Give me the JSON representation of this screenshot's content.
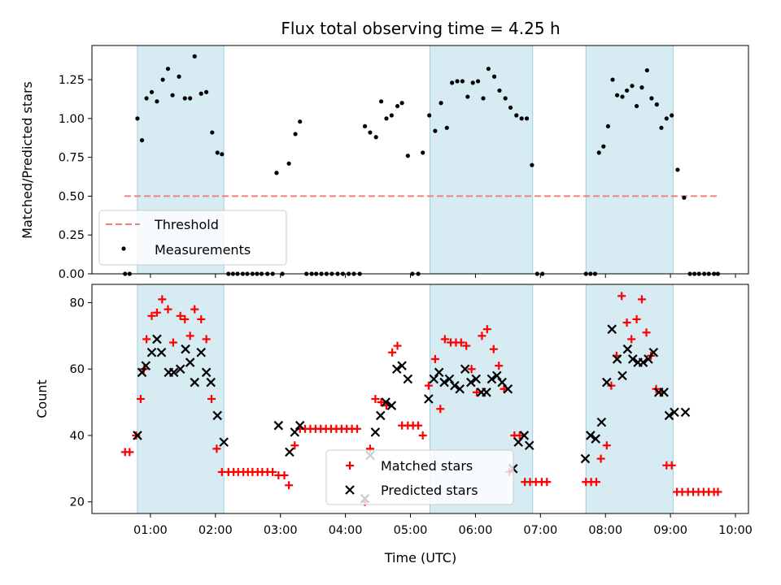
{
  "chart_data": [
    {
      "type": "scatter",
      "title": "Flux total observing time = 4.25 h",
      "ylabel": "Matched/Predicted stars",
      "xlabel": "",
      "xlim": [
        0.1,
        10.2
      ],
      "ylim": [
        0,
        1.47
      ],
      "yticks": [
        0.0,
        0.25,
        0.5,
        0.75,
        1.0,
        1.25
      ],
      "ytick_labels": [
        "0.00",
        "0.25",
        "0.50",
        "0.75",
        "1.00",
        "1.25"
      ],
      "shaded_intervals": [
        [
          0.8,
          2.13
        ],
        [
          5.3,
          6.88
        ],
        [
          7.7,
          9.04
        ]
      ],
      "threshold": {
        "name": "Threshold",
        "y": 0.5,
        "x": [
          0.6,
          9.73
        ],
        "color": "#f08080"
      },
      "legend": {
        "placement": "lower-left",
        "entries": [
          "Threshold",
          "Measurements"
        ]
      },
      "series": [
        {
          "name": "Measurements",
          "color": "#000000",
          "x": [
            0.61,
            0.68,
            0.8,
            0.87,
            0.94,
            1.02,
            1.1,
            1.19,
            1.27,
            1.34,
            1.44,
            1.53,
            1.61,
            1.68,
            1.78,
            1.86,
            1.95,
            2.03,
            2.1,
            2.2,
            2.27,
            2.34,
            2.42,
            2.49,
            2.57,
            2.64,
            2.71,
            2.8,
            2.88,
            2.94,
            3.03,
            3.13,
            3.23,
            3.3,
            3.4,
            3.48,
            3.55,
            3.63,
            3.71,
            3.79,
            3.88,
            3.96,
            4.05,
            4.13,
            4.22,
            4.3,
            4.38,
            4.47,
            4.55,
            4.63,
            4.71,
            4.8,
            4.87,
            4.96,
            5.03,
            5.12,
            5.19,
            5.29,
            5.38,
            5.47,
            5.56,
            5.64,
            5.72,
            5.8,
            5.88,
            5.96,
            6.04,
            6.12,
            6.2,
            6.29,
            6.37,
            6.46,
            6.54,
            6.63,
            6.71,
            6.79,
            6.87,
            6.95,
            7.03,
            7.7,
            7.77,
            7.84,
            7.9,
            7.97,
            8.04,
            8.11,
            8.18,
            8.26,
            8.33,
            8.41,
            8.48,
            8.56,
            8.64,
            8.71,
            8.79,
            8.86,
            8.94,
            9.02,
            9.11,
            9.21,
            9.3,
            9.37,
            9.44,
            9.52,
            9.59,
            9.67,
            9.73
          ],
          "y": [
            0,
            0,
            1.0,
            0.86,
            1.13,
            1.17,
            1.11,
            1.25,
            1.32,
            1.15,
            1.27,
            1.13,
            1.13,
            1.4,
            1.16,
            1.17,
            0.91,
            0.78,
            0.77,
            0,
            0,
            0,
            0,
            0,
            0,
            0,
            0,
            0,
            0,
            0.65,
            0,
            0.71,
            0.9,
            0.98,
            0,
            0,
            0,
            0,
            0,
            0,
            0,
            0,
            0,
            0,
            0,
            0.95,
            0.91,
            0.88,
            1.11,
            1.0,
            1.02,
            1.08,
            1.1,
            0.76,
            0,
            0,
            0.78,
            1.02,
            0.92,
            1.1,
            0.94,
            1.23,
            1.24,
            1.24,
            1.14,
            1.23,
            1.24,
            1.13,
            1.32,
            1.27,
            1.18,
            1.13,
            1.07,
            1.02,
            1.0,
            1.0,
            0.7,
            0,
            0,
            0,
            0,
            0,
            0.78,
            0.82,
            0.95,
            1.25,
            1.15,
            1.14,
            1.18,
            1.21,
            1.08,
            1.2,
            1.31,
            1.13,
            1.09,
            0.94,
            1.0,
            1.02,
            0.67,
            0.49,
            0,
            0,
            0,
            0,
            0,
            0,
            0
          ]
        }
      ]
    },
    {
      "type": "scatter",
      "title": "",
      "xlabel": "Time (UTC)",
      "ylabel": "Count",
      "xlim": [
        0.1,
        10.2
      ],
      "ylim": [
        16.5,
        85.5
      ],
      "yticks": [
        20,
        40,
        60,
        80
      ],
      "ytick_labels": [
        "20",
        "40",
        "60",
        "80"
      ],
      "xticks": [
        1,
        2,
        3,
        4,
        5,
        6,
        7,
        8,
        9,
        10
      ],
      "xtick_labels": [
        "01:00",
        "02:00",
        "03:00",
        "04:00",
        "05:00",
        "06:00",
        "07:00",
        "08:00",
        "09:00",
        "10:00"
      ],
      "shaded_intervals": [
        [
          0.8,
          2.13
        ],
        [
          5.3,
          6.88
        ],
        [
          7.7,
          9.04
        ]
      ],
      "legend": {
        "placement": "lower-center",
        "entries": [
          "Matched stars",
          "Predicted stars"
        ]
      },
      "series": [
        {
          "name": "Matched stars",
          "marker": "plus",
          "color": "#ff0000",
          "x": [
            0.61,
            0.68,
            0.78,
            0.85,
            0.9,
            0.94,
            1.02,
            1.1,
            1.18,
            1.27,
            1.35,
            1.46,
            1.53,
            1.61,
            1.68,
            1.78,
            1.86,
            1.94,
            2.02,
            2.1,
            2.2,
            2.28,
            2.35,
            2.43,
            2.5,
            2.57,
            2.65,
            2.72,
            2.8,
            2.88,
            2.97,
            3.06,
            3.13,
            3.22,
            3.3,
            3.38,
            3.46,
            3.54,
            3.62,
            3.7,
            3.78,
            3.86,
            3.94,
            4.02,
            4.1,
            4.18,
            4.3,
            4.38,
            4.46,
            4.55,
            4.63,
            4.72,
            4.8,
            4.87,
            4.96,
            5.04,
            5.12,
            5.19,
            5.28,
            5.38,
            5.46,
            5.53,
            5.62,
            5.7,
            5.78,
            5.86,
            5.94,
            6.02,
            6.1,
            6.18,
            6.28,
            6.36,
            6.44,
            6.52,
            6.6,
            6.68,
            6.76,
            6.84,
            6.93,
            7.02,
            7.1,
            7.7,
            7.78,
            7.86,
            7.93,
            8.02,
            8.09,
            8.17,
            8.25,
            8.33,
            8.4,
            8.48,
            8.56,
            8.63,
            8.7,
            8.78,
            8.86,
            8.94,
            9.02,
            9.1,
            9.18,
            9.27,
            9.35,
            9.43,
            9.51,
            9.59,
            9.67,
            9.73
          ],
          "y": [
            35,
            35,
            40,
            51,
            60,
            69,
            76,
            77,
            81,
            78,
            68,
            76,
            75,
            70,
            78,
            75,
            69,
            51,
            36,
            29,
            29,
            29,
            29,
            29,
            29,
            29,
            29,
            29,
            29,
            29,
            28,
            28,
            25,
            37,
            42,
            42,
            42,
            42,
            42,
            42,
            42,
            42,
            42,
            42,
            42,
            42,
            20,
            36,
            51,
            50,
            49,
            65,
            67,
            43,
            43,
            43,
            43,
            40,
            55,
            63,
            48,
            69,
            68,
            68,
            68,
            67,
            60,
            53,
            70,
            72,
            66,
            61,
            54,
            29,
            40,
            40,
            26,
            26,
            26,
            26,
            26,
            26,
            26,
            26,
            33,
            37,
            55,
            64,
            82,
            74,
            69,
            75,
            81,
            71,
            64,
            54,
            53,
            31,
            31,
            23,
            23,
            23,
            23,
            23,
            23,
            23,
            23,
            23
          ]
        },
        {
          "name": "Predicted stars",
          "marker": "cross",
          "color": "#000000",
          "x": [
            0.8,
            0.87,
            0.93,
            1.02,
            1.1,
            1.17,
            1.28,
            1.36,
            1.46,
            1.54,
            1.61,
            1.68,
            1.78,
            1.86,
            1.93,
            2.03,
            2.13,
            2.97,
            3.14,
            3.22,
            3.3,
            4.3,
            4.38,
            4.46,
            4.54,
            4.62,
            4.71,
            4.79,
            4.87,
            4.96,
            5.28,
            5.36,
            5.44,
            5.52,
            5.6,
            5.68,
            5.76,
            5.84,
            5.93,
            6.01,
            6.09,
            6.17,
            6.25,
            6.33,
            6.41,
            6.5,
            6.58,
            6.66,
            6.75,
            6.83,
            7.69,
            7.77,
            7.85,
            7.94,
            8.02,
            8.1,
            8.18,
            8.26,
            8.34,
            8.42,
            8.5,
            8.58,
            8.66,
            8.74,
            8.82,
            8.9,
            8.98,
            9.06,
            9.23
          ],
          "y": [
            40,
            59,
            61,
            65,
            69,
            65,
            59,
            59,
            60,
            66,
            62,
            56,
            65,
            59,
            56,
            46,
            38,
            43,
            35,
            41,
            43,
            21,
            34,
            41,
            46,
            50,
            49,
            60,
            61,
            57,
            51,
            57,
            59,
            56,
            57,
            55,
            54,
            60,
            56,
            57,
            53,
            53,
            57,
            58,
            56,
            54,
            30,
            38,
            40,
            37,
            33,
            40,
            39,
            44,
            56,
            72,
            63,
            58,
            66,
            63,
            62,
            62,
            63,
            65,
            53,
            53,
            46,
            47,
            47
          ]
        }
      ]
    }
  ]
}
